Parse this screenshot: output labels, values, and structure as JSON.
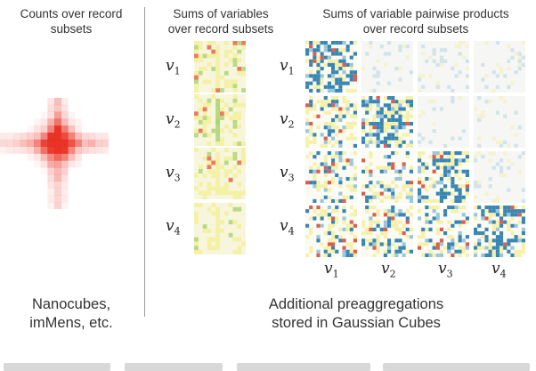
{
  "headings": {
    "counts": [
      "Counts over record",
      "subsets"
    ],
    "sums": [
      "Sums of variables",
      "over record subsets"
    ],
    "products": [
      "Sums of variable pairwise products",
      "over record subsets"
    ]
  },
  "captions": {
    "left": [
      "Nanocubes,",
      "imMens, etc."
    ],
    "right": [
      "Additional preaggregations",
      "stored in Gaussian Cubes"
    ]
  },
  "variables": [
    {
      "base": "v",
      "sub": "1"
    },
    {
      "base": "v",
      "sub": "2"
    },
    {
      "base": "v",
      "sub": "3"
    },
    {
      "base": "v",
      "sub": "4"
    }
  ],
  "colors": {
    "count_peak": "#e8281a",
    "count_light": "#fde4e0",
    "sum_base": "#f7f6dc",
    "sum_yellow": "#f3f19e",
    "sum_green": "#a9d36f",
    "sum_red": "#e9654a",
    "product_blue": "#2e7fb0",
    "product_light_blue": "#8fc1dc",
    "product_yellow": "#f4f0a5",
    "product_red": "#dc4b3c",
    "divider": "#9a9a9a"
  }
}
